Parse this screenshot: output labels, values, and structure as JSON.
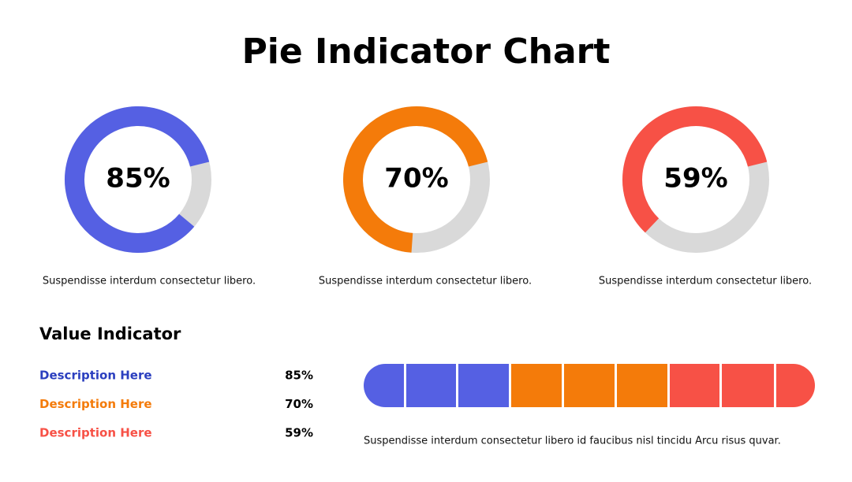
{
  "title": "Pie Indicator Chart",
  "chart_data": [
    {
      "type": "donut",
      "values": [
        85
      ],
      "value_labels": [
        "85%"
      ],
      "color": "#5560E3",
      "track_color": "#D9D9D9",
      "caption": "Suspendisse interdum consectetur libero."
    },
    {
      "type": "donut",
      "values": [
        70
      ],
      "value_labels": [
        "70%"
      ],
      "color": "#F47B0A",
      "track_color": "#D9D9D9",
      "caption": "Suspendisse interdum consectetur libero."
    },
    {
      "type": "donut",
      "values": [
        59
      ],
      "value_labels": [
        "59%"
      ],
      "color": "#F75146",
      "track_color": "#D9D9D9",
      "caption": "Suspendisse interdum consectetur libero."
    }
  ],
  "value_indicator": {
    "title": "Value Indicator",
    "items": [
      {
        "label": "Description Here",
        "value": "85%",
        "color": "#2B3FBF"
      },
      {
        "label": "Description Here",
        "value": "70%",
        "color": "#F47B0A"
      },
      {
        "label": "Description Here",
        "value": "59%",
        "color": "#F75146"
      }
    ],
    "caption": "Suspendisse interdum consectetur libero id faucibus nisl tincidu Arcu risus quvar."
  }
}
